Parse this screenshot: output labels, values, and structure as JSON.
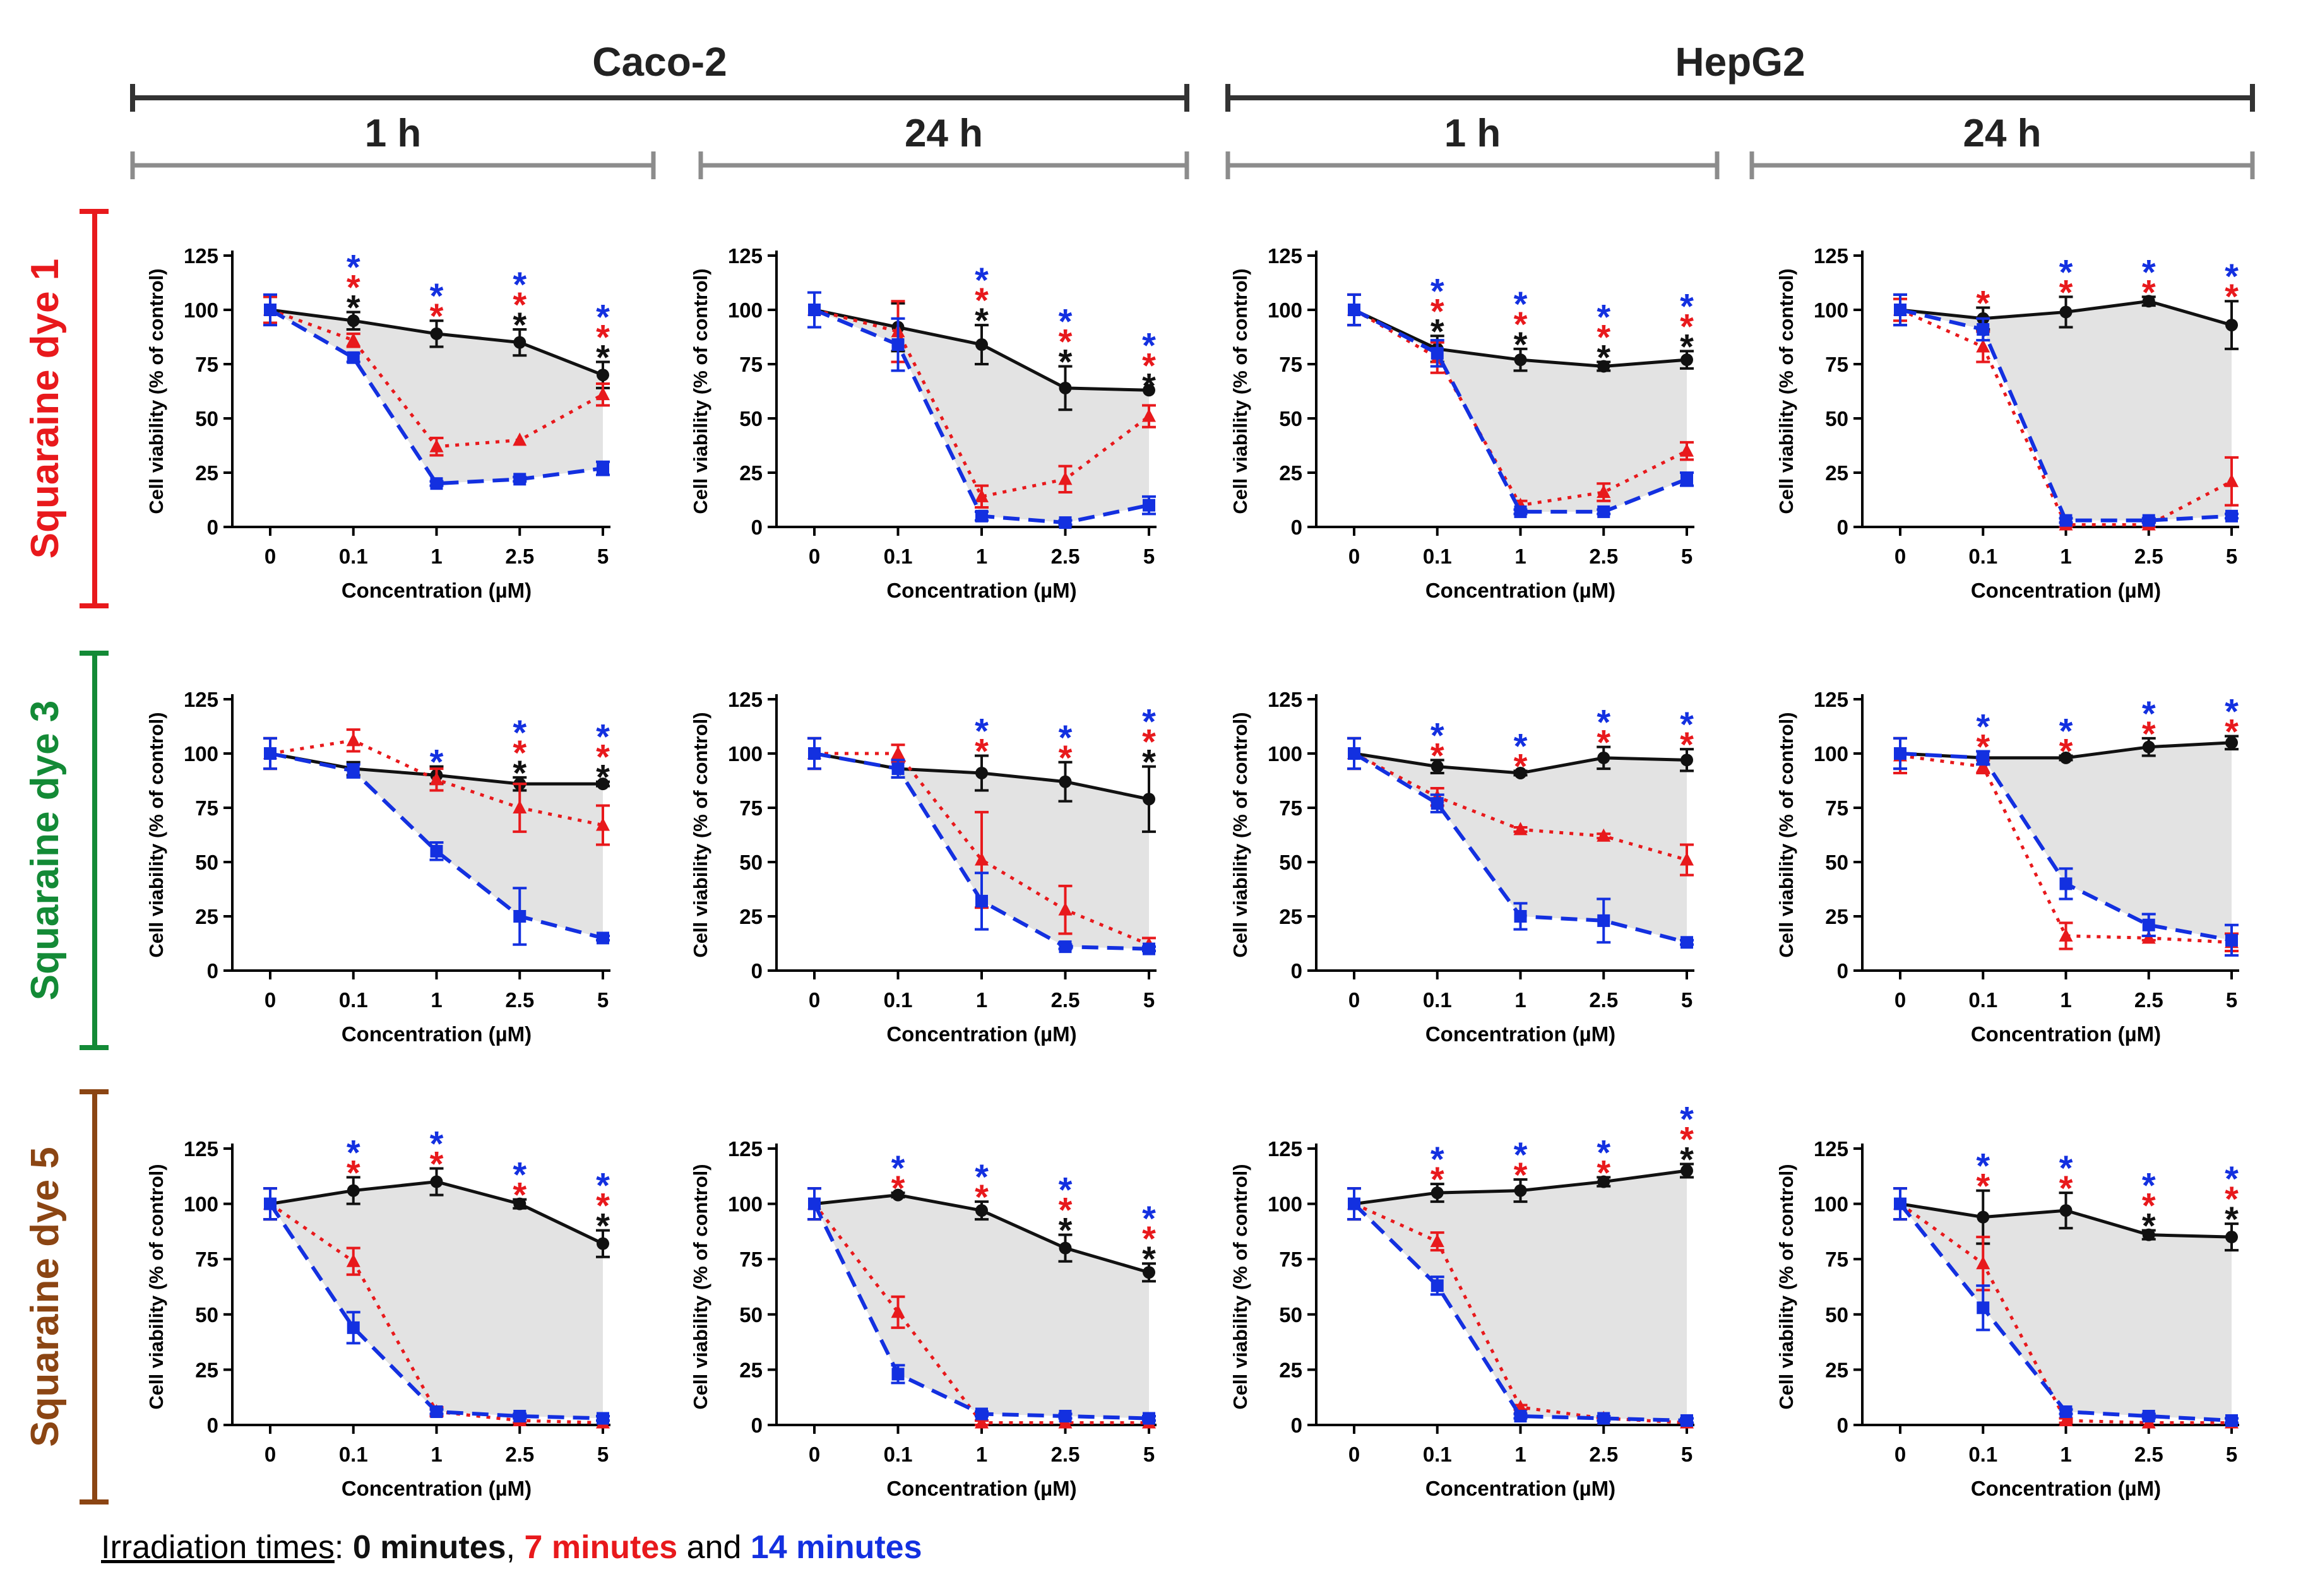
{
  "figure": {
    "cell_lines": [
      {
        "name": "Caco-2",
        "times": [
          "1 h",
          "24 h"
        ]
      },
      {
        "name": "HepG2",
        "times": [
          "1 h",
          "24 h"
        ]
      }
    ],
    "dyes": [
      {
        "name": "Squaraine dye 1",
        "color": "#e8191c"
      },
      {
        "name": "Squaraine dye 3",
        "color": "#138a36"
      },
      {
        "name": "Squaraine dye 5",
        "color": "#8b4513"
      }
    ]
  },
  "legend": {
    "label": "Irradiation times",
    "sep": ": ",
    "t0": "0 minutes",
    "comma": ", ",
    "t7": "7 minutes",
    "and": " and ",
    "t14": "14 minutes"
  },
  "colors": {
    "black": "#111111",
    "red": "#e8191c",
    "blue": "#1330e0",
    "fill": "#e3e3e3",
    "bracket_dark": "#333333",
    "bracket_light": "#8c8c8c"
  },
  "chart_data": [
    {
      "type": "line",
      "panel": "Squaraine dye 1 / Caco-2 / 1 h",
      "categories": [
        "0",
        "0.1",
        "1",
        "2.5",
        "5"
      ],
      "xlabel": "Concentration (µM)",
      "ylabel": "Cell viability (% of control)",
      "ylim": [
        0,
        125
      ],
      "yticks": [
        0,
        25,
        50,
        75,
        100,
        125
      ],
      "series": [
        {
          "name": "0 minutes",
          "values": [
            100,
            95,
            89,
            85,
            70
          ],
          "errors": [
            6,
            4,
            6,
            6,
            6
          ]
        },
        {
          "name": "7 minutes",
          "values": [
            100,
            86,
            37,
            40,
            61
          ],
          "errors": [
            6,
            3,
            4,
            0,
            5
          ]
        },
        {
          "name": "14 minutes",
          "values": [
            100,
            78,
            20,
            22,
            27
          ],
          "errors": [
            7,
            2,
            1,
            1,
            3
          ]
        }
      ],
      "significance": [
        [],
        [
          "black",
          "red",
          "blue"
        ],
        [
          "red",
          "blue"
        ],
        [
          "black",
          "red",
          "blue"
        ],
        [
          "black",
          "red",
          "blue"
        ]
      ]
    },
    {
      "type": "line",
      "panel": "Squaraine dye 1 / Caco-2 / 24 h",
      "categories": [
        "0",
        "0.1",
        "1",
        "2.5",
        "5"
      ],
      "xlabel": "Concentration (µM)",
      "ylabel": "Cell viability (% of control)",
      "ylim": [
        0,
        125
      ],
      "yticks": [
        0,
        25,
        50,
        75,
        100,
        125
      ],
      "series": [
        {
          "name": "0 minutes",
          "values": [
            100,
            92,
            84,
            64,
            63
          ],
          "errors": [
            8,
            11,
            9,
            10,
            0
          ]
        },
        {
          "name": "7 minutes",
          "values": [
            100,
            90,
            14,
            22,
            51
          ],
          "errors": [
            8,
            14,
            5,
            6,
            5
          ]
        },
        {
          "name": "14 minutes",
          "values": [
            100,
            84,
            5,
            2,
            10
          ],
          "errors": [
            8,
            12,
            2,
            1,
            4
          ]
        }
      ],
      "significance": [
        [],
        [],
        [
          "black",
          "red",
          "blue"
        ],
        [
          "black",
          "red",
          "blue"
        ],
        [
          "black",
          "red",
          "blue"
        ]
      ]
    },
    {
      "type": "line",
      "panel": "Squaraine dye 1 / HepG2 / 1 h",
      "categories": [
        "0",
        "0.1",
        "1",
        "2.5",
        "5"
      ],
      "xlabel": "Concentration (µM)",
      "ylabel": "Cell viability (% of control)",
      "ylim": [
        0,
        125
      ],
      "yticks": [
        0,
        25,
        50,
        75,
        100,
        125
      ],
      "series": [
        {
          "name": "0 minutes",
          "values": [
            100,
            82,
            77,
            74,
            77
          ],
          "errors": [
            7,
            6,
            5,
            2,
            4
          ]
        },
        {
          "name": "7 minutes",
          "values": [
            100,
            78,
            10,
            16,
            35
          ],
          "errors": [
            7,
            7,
            2,
            4,
            4
          ]
        },
        {
          "name": "14 minutes",
          "values": [
            100,
            80,
            7,
            7,
            22
          ],
          "errors": [
            7,
            6,
            1,
            1,
            3
          ]
        }
      ],
      "significance": [
        [],
        [
          "black",
          "red",
          "blue"
        ],
        [
          "black",
          "red",
          "blue"
        ],
        [
          "black",
          "red",
          "blue"
        ],
        [
          "black",
          "red",
          "blue"
        ]
      ]
    },
    {
      "type": "line",
      "panel": "Squaraine dye 1 / HepG2 / 24 h",
      "categories": [
        "0",
        "0.1",
        "1",
        "2.5",
        "5"
      ],
      "xlabel": "Concentration (µM)",
      "ylabel": "Cell viability (% of control)",
      "ylim": [
        0,
        125
      ],
      "yticks": [
        0,
        25,
        50,
        75,
        100,
        125
      ],
      "series": [
        {
          "name": "0 minutes",
          "values": [
            100,
            96,
            99,
            104,
            93
          ],
          "errors": [
            7,
            5,
            7,
            2,
            11
          ]
        },
        {
          "name": "7 minutes",
          "values": [
            100,
            83,
            1,
            1,
            21
          ],
          "errors": [
            5,
            7,
            1,
            1,
            11
          ]
        },
        {
          "name": "14 minutes",
          "values": [
            100,
            91,
            3,
            3,
            5
          ],
          "errors": [
            7,
            5,
            1,
            1,
            1
          ]
        }
      ],
      "significance": [
        [],
        [
          "red"
        ],
        [
          "red",
          "blue"
        ],
        [
          "red",
          "blue"
        ],
        [
          "red",
          "blue"
        ]
      ]
    },
    {
      "type": "line",
      "panel": "Squaraine dye 3 / Caco-2 / 1 h",
      "categories": [
        "0",
        "0.1",
        "1",
        "2.5",
        "5"
      ],
      "xlabel": "Concentration (µM)",
      "ylabel": "Cell viability (% of control)",
      "ylim": [
        0,
        125
      ],
      "yticks": [
        0,
        25,
        50,
        75,
        100,
        125
      ],
      "series": [
        {
          "name": "0 minutes",
          "values": [
            100,
            93,
            90,
            86,
            86
          ],
          "errors": [
            7,
            3,
            4,
            3,
            1
          ]
        },
        {
          "name": "7 minutes",
          "values": [
            100,
            106,
            88,
            75,
            67
          ],
          "errors": [
            7,
            5,
            5,
            11,
            9
          ]
        },
        {
          "name": "14 minutes",
          "values": [
            100,
            92,
            55,
            25,
            15
          ],
          "errors": [
            7,
            3,
            4,
            13,
            1
          ]
        }
      ],
      "significance": [
        [],
        [],
        [
          "blue"
        ],
        [
          "black",
          "red",
          "blue"
        ],
        [
          "black",
          "red",
          "blue"
        ]
      ]
    },
    {
      "type": "line",
      "panel": "Squaraine dye 3 / Caco-2 / 24 h",
      "categories": [
        "0",
        "0.1",
        "1",
        "2.5",
        "5"
      ],
      "xlabel": "Concentration (µM)",
      "ylabel": "Cell viability (% of control)",
      "ylim": [
        0,
        125
      ],
      "yticks": [
        0,
        25,
        50,
        75,
        100,
        125
      ],
      "series": [
        {
          "name": "0 minutes",
          "values": [
            100,
            93,
            91,
            87,
            79
          ],
          "errors": [
            7,
            4,
            8,
            9,
            15
          ]
        },
        {
          "name": "7 minutes",
          "values": [
            100,
            100,
            51,
            28,
            12
          ],
          "errors": [
            7,
            4,
            22,
            11,
            3
          ]
        },
        {
          "name": "14 minutes",
          "values": [
            100,
            93,
            32,
            11,
            10
          ],
          "errors": [
            7,
            4,
            13,
            1,
            1
          ]
        }
      ],
      "significance": [
        [],
        [],
        [
          "red",
          "blue"
        ],
        [
          "red",
          "blue"
        ],
        [
          "black",
          "red",
          "blue"
        ]
      ]
    },
    {
      "type": "line",
      "panel": "Squaraine dye 3 / HepG2 / 1 h",
      "categories": [
        "0",
        "0.1",
        "1",
        "2.5",
        "5"
      ],
      "xlabel": "Concentration (µM)",
      "ylabel": "Cell viability (% of control)",
      "ylim": [
        0,
        125
      ],
      "yticks": [
        0,
        25,
        50,
        75,
        100,
        125
      ],
      "series": [
        {
          "name": "0 minutes",
          "values": [
            100,
            94,
            91,
            98,
            97
          ],
          "errors": [
            7,
            3,
            1,
            5,
            5
          ]
        },
        {
          "name": "7 minutes",
          "values": [
            100,
            80,
            65,
            62,
            51
          ],
          "errors": [
            7,
            4,
            1,
            1,
            7
          ]
        },
        {
          "name": "14 minutes",
          "values": [
            100,
            77,
            25,
            23,
            13
          ],
          "errors": [
            7,
            4,
            6,
            10,
            1
          ]
        }
      ],
      "significance": [
        [],
        [
          "red",
          "blue"
        ],
        [
          "red",
          "blue"
        ],
        [
          "red",
          "blue"
        ],
        [
          "red",
          "blue"
        ]
      ]
    },
    {
      "type": "line",
      "panel": "Squaraine dye 3 / HepG2 / 24 h",
      "categories": [
        "0",
        "0.1",
        "1",
        "2.5",
        "5"
      ],
      "xlabel": "Concentration (µM)",
      "ylabel": "Cell viability (% of control)",
      "ylim": [
        0,
        125
      ],
      "yticks": [
        0,
        25,
        50,
        75,
        100,
        125
      ],
      "series": [
        {
          "name": "0 minutes",
          "values": [
            100,
            98,
            98,
            103,
            105
          ],
          "errors": [
            7,
            3,
            1,
            4,
            3
          ]
        },
        {
          "name": "7 minutes",
          "values": [
            99,
            94,
            16,
            15,
            13
          ],
          "errors": [
            8,
            3,
            6,
            1,
            4
          ]
        },
        {
          "name": "14 minutes",
          "values": [
            100,
            98,
            40,
            21,
            14
          ],
          "errors": [
            7,
            3,
            7,
            5,
            7
          ]
        }
      ],
      "significance": [
        [],
        [
          "red",
          "blue"
        ],
        [
          "red",
          "blue"
        ],
        [
          "red",
          "blue"
        ],
        [
          "red",
          "blue"
        ]
      ]
    },
    {
      "type": "line",
      "panel": "Squaraine dye 5 / Caco-2 / 1 h",
      "categories": [
        "0",
        "0.1",
        "1",
        "2.5",
        "5"
      ],
      "xlabel": "Concentration (µM)",
      "ylabel": "Cell viability (% of control)",
      "ylim": [
        0,
        125
      ],
      "yticks": [
        0,
        25,
        50,
        75,
        100,
        125
      ],
      "series": [
        {
          "name": "0 minutes",
          "values": [
            100,
            106,
            110,
            100,
            82
          ],
          "errors": [
            7,
            6,
            6,
            2,
            6
          ]
        },
        {
          "name": "7 minutes",
          "values": [
            100,
            74,
            6,
            2,
            1
          ],
          "errors": [
            7,
            6,
            2,
            1,
            0
          ]
        },
        {
          "name": "14 minutes",
          "values": [
            100,
            44,
            6,
            4,
            3
          ],
          "errors": [
            7,
            7,
            1,
            1,
            1
          ]
        }
      ],
      "significance": [
        [],
        [
          "red",
          "blue"
        ],
        [
          "red",
          "blue"
        ],
        [
          "red",
          "blue"
        ],
        [
          "black",
          "red",
          "blue"
        ]
      ]
    },
    {
      "type": "line",
      "panel": "Squaraine dye 5 / Caco-2 / 24 h",
      "categories": [
        "0",
        "0.1",
        "1",
        "2.5",
        "5"
      ],
      "xlabel": "Concentration (µM)",
      "ylabel": "Cell viability (% of control)",
      "ylim": [
        0,
        125
      ],
      "yticks": [
        0,
        25,
        50,
        75,
        100,
        125
      ],
      "series": [
        {
          "name": "0 minutes",
          "values": [
            100,
            104,
            97,
            80,
            69
          ],
          "errors": [
            7,
            1,
            4,
            6,
            4
          ]
        },
        {
          "name": "7 minutes",
          "values": [
            100,
            51,
            1,
            1,
            1
          ],
          "errors": [
            7,
            7,
            1,
            0,
            0
          ]
        },
        {
          "name": "14 minutes",
          "values": [
            100,
            23,
            5,
            4,
            3
          ],
          "errors": [
            7,
            4,
            1,
            1,
            1
          ]
        }
      ],
      "significance": [
        [],
        [
          "red",
          "blue"
        ],
        [
          "red",
          "blue"
        ],
        [
          "black",
          "red",
          "blue"
        ],
        [
          "black",
          "red",
          "blue"
        ]
      ]
    },
    {
      "type": "line",
      "panel": "Squaraine dye 5 / HepG2 / 1 h",
      "categories": [
        "0",
        "0.1",
        "1",
        "2.5",
        "5"
      ],
      "xlabel": "Concentration (µM)",
      "ylabel": "Cell viability (% of control)",
      "ylim": [
        0,
        125
      ],
      "yticks": [
        0,
        25,
        50,
        75,
        100,
        125
      ],
      "series": [
        {
          "name": "0 minutes",
          "values": [
            100,
            105,
            106,
            110,
            115
          ],
          "errors": [
            7,
            4,
            5,
            2,
            3
          ]
        },
        {
          "name": "7 minutes",
          "values": [
            100,
            83,
            8,
            3,
            1
          ],
          "errors": [
            7,
            4,
            1,
            0,
            0
          ]
        },
        {
          "name": "14 minutes",
          "values": [
            100,
            63,
            4,
            3,
            2
          ],
          "errors": [
            7,
            4,
            1,
            1,
            1
          ]
        }
      ],
      "significance": [
        [],
        [
          "red",
          "blue"
        ],
        [
          "red",
          "blue"
        ],
        [
          "red",
          "blue"
        ],
        [
          "black",
          "red",
          "blue"
        ]
      ]
    },
    {
      "type": "line",
      "panel": "Squaraine dye 5 / HepG2 / 24 h",
      "categories": [
        "0",
        "0.1",
        "1",
        "2.5",
        "5"
      ],
      "xlabel": "Concentration (µM)",
      "ylabel": "Cell viability (% of control)",
      "ylim": [
        0,
        125
      ],
      "yticks": [
        0,
        25,
        50,
        75,
        100,
        125
      ],
      "series": [
        {
          "name": "0 minutes",
          "values": [
            100,
            94,
            97,
            86,
            85
          ],
          "errors": [
            7,
            12,
            8,
            2,
            6
          ]
        },
        {
          "name": "7 minutes",
          "values": [
            100,
            73,
            2,
            1,
            1
          ],
          "errors": [
            7,
            12,
            1,
            0,
            0
          ]
        },
        {
          "name": "14 minutes",
          "values": [
            100,
            53,
            6,
            4,
            2
          ],
          "errors": [
            7,
            10,
            1,
            1,
            1
          ]
        }
      ],
      "significance": [
        [],
        [
          "red",
          "blue"
        ],
        [
          "red",
          "blue"
        ],
        [
          "black",
          "red",
          "blue"
        ],
        [
          "black",
          "red",
          "blue"
        ]
      ]
    }
  ]
}
